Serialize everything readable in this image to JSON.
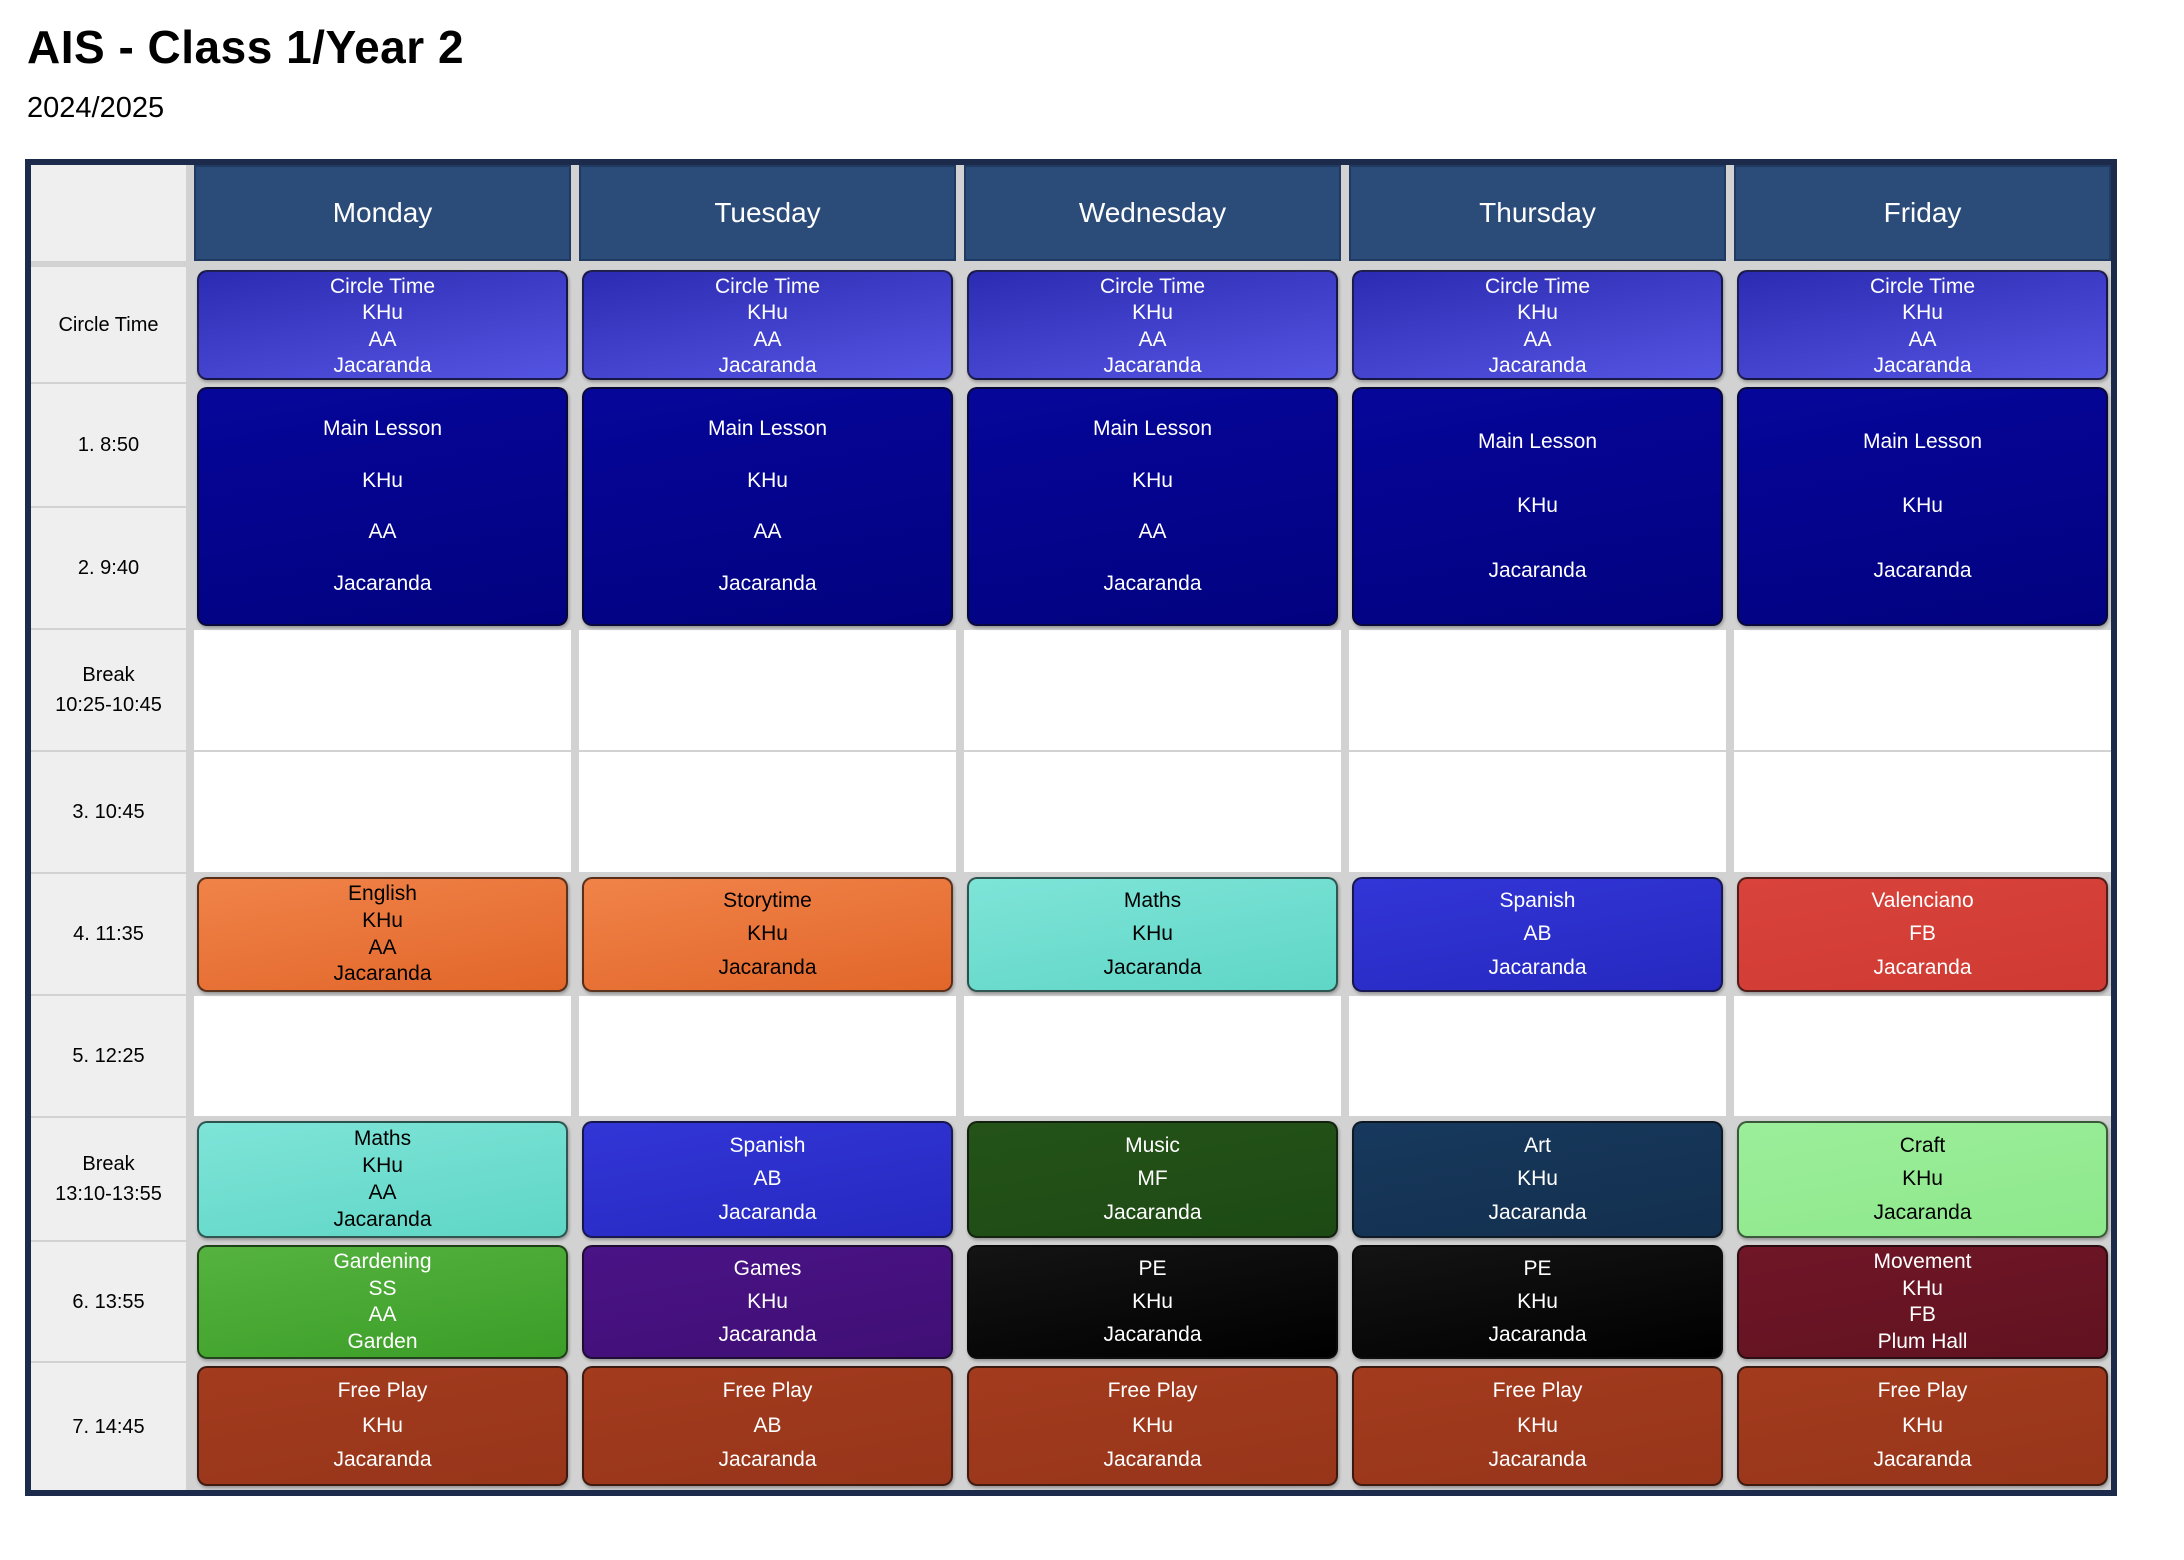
{
  "page": {
    "title": "AIS - Class 1/Year 2",
    "subtitle": "2024/2025"
  },
  "days": [
    "Monday",
    "Tuesday",
    "Wednesday",
    "Thursday",
    "Friday"
  ],
  "rows": [
    {
      "id": "circle",
      "label": "Circle Time",
      "empty": false
    },
    {
      "id": "p1",
      "label": "1. 8:50",
      "empty": false
    },
    {
      "id": "p2",
      "label": "2. 9:40",
      "empty": false
    },
    {
      "id": "break1",
      "label": "Break\n10:25-10:45",
      "empty": true
    },
    {
      "id": "p3",
      "label": "3. 10:45",
      "empty": true
    },
    {
      "id": "p4",
      "label": "4. 11:35",
      "empty": false
    },
    {
      "id": "p5",
      "label": "5. 12:25",
      "empty": true
    },
    {
      "id": "break2",
      "label": "Break\n13:10-13:55",
      "empty": false
    },
    {
      "id": "p6",
      "label": "6. 13:55",
      "empty": false
    },
    {
      "id": "p7",
      "label": "7. 14:45",
      "empty": false
    }
  ],
  "palette": {
    "header_blue": "#2b4b79",
    "label_gray": "#efefef",
    "grid_line": "#d2d2d2",
    "outer_border": "#1c2b4c",
    "circle_blue": {
      "bg": "#2b2bb2",
      "bg2": "#5454e2",
      "text": "#ffffff"
    },
    "navy_lesson": {
      "bg": "#06069a",
      "bg2": "#020280",
      "text": "#ffffff"
    },
    "orange": {
      "bg": "#f08349",
      "bg2": "#e2662a",
      "text": "#000000"
    },
    "teal": {
      "bg": "#7ee4d8",
      "bg2": "#5fd6c6",
      "text": "#000000"
    },
    "blue": {
      "bg": "#3236d6",
      "bg2": "#2628c0",
      "text": "#ffffff"
    },
    "red": {
      "bg": "#d8433b",
      "bg2": "#cf3a32",
      "text": "#ffffff"
    },
    "dark_green": {
      "bg": "#245318",
      "bg2": "#1d4a14",
      "text": "#ffffff"
    },
    "dark_navy": {
      "bg": "#17395d",
      "bg2": "#132f4e",
      "text": "#ffffff"
    },
    "light_green": {
      "bg": "#9cee9a",
      "bg2": "#8de88b",
      "text": "#000000"
    },
    "green": {
      "bg": "#55b23f",
      "bg2": "#3b9e27",
      "text": "#ffffff"
    },
    "purple": {
      "bg": "#4a1386",
      "bg2": "#400f75",
      "text": "#ffffff"
    },
    "black": {
      "bg": "#141414",
      "bg2": "#000000",
      "text": "#ffffff"
    },
    "maroon": {
      "bg": "#701627",
      "bg2": "#611220",
      "text": "#ffffff"
    },
    "rust": {
      "bg": "#a33b1e",
      "bg2": "#97351a",
      "text": "#ffffff"
    }
  },
  "cells": [
    {
      "row": "circle",
      "day": 0,
      "color": "circle_blue",
      "lines": [
        "Circle Time",
        "KHu",
        "AA",
        "Jacaranda"
      ]
    },
    {
      "row": "circle",
      "day": 1,
      "color": "circle_blue",
      "lines": [
        "Circle Time",
        "KHu",
        "AA",
        "Jacaranda"
      ]
    },
    {
      "row": "circle",
      "day": 2,
      "color": "circle_blue",
      "lines": [
        "Circle Time",
        "KHu",
        "AA",
        "Jacaranda"
      ]
    },
    {
      "row": "circle",
      "day": 3,
      "color": "circle_blue",
      "lines": [
        "Circle Time",
        "KHu",
        "AA",
        "Jacaranda"
      ]
    },
    {
      "row": "circle",
      "day": 4,
      "color": "circle_blue",
      "lines": [
        "Circle Time",
        "KHu",
        "AA",
        "Jacaranda"
      ]
    },
    {
      "row": "p1",
      "day": 0,
      "rowspan": 2,
      "color": "navy_lesson",
      "lines": [
        "Main Lesson",
        "KHu",
        "AA",
        "Jacaranda"
      ]
    },
    {
      "row": "p1",
      "day": 1,
      "rowspan": 2,
      "color": "navy_lesson",
      "lines": [
        "Main Lesson",
        "KHu",
        "AA",
        "Jacaranda"
      ]
    },
    {
      "row": "p1",
      "day": 2,
      "rowspan": 2,
      "color": "navy_lesson",
      "lines": [
        "Main Lesson",
        "KHu",
        "AA",
        "Jacaranda"
      ]
    },
    {
      "row": "p1",
      "day": 3,
      "rowspan": 2,
      "color": "navy_lesson",
      "lines": [
        "Main Lesson",
        "KHu",
        "Jacaranda"
      ]
    },
    {
      "row": "p1",
      "day": 4,
      "rowspan": 2,
      "color": "navy_lesson",
      "lines": [
        "Main Lesson",
        "KHu",
        "Jacaranda"
      ]
    },
    {
      "row": "p4",
      "day": 0,
      "color": "orange",
      "lines": [
        "English",
        "KHu",
        "AA",
        "Jacaranda"
      ]
    },
    {
      "row": "p4",
      "day": 1,
      "color": "orange",
      "lines": [
        "Storytime",
        "KHu",
        "Jacaranda"
      ]
    },
    {
      "row": "p4",
      "day": 2,
      "color": "teal",
      "lines": [
        "Maths",
        "KHu",
        "Jacaranda"
      ]
    },
    {
      "row": "p4",
      "day": 3,
      "color": "blue",
      "lines": [
        "Spanish",
        "AB",
        "Jacaranda"
      ]
    },
    {
      "row": "p4",
      "day": 4,
      "color": "red",
      "lines": [
        "Valenciano",
        "FB",
        "Jacaranda"
      ]
    },
    {
      "row": "break2",
      "day": 0,
      "color": "teal",
      "lines": [
        "Maths",
        "KHu",
        "AA",
        "Jacaranda"
      ]
    },
    {
      "row": "break2",
      "day": 1,
      "color": "blue",
      "lines": [
        "Spanish",
        "AB",
        "Jacaranda"
      ]
    },
    {
      "row": "break2",
      "day": 2,
      "color": "dark_green",
      "lines": [
        "Music",
        "MF",
        "Jacaranda"
      ]
    },
    {
      "row": "break2",
      "day": 3,
      "color": "dark_navy",
      "lines": [
        "Art",
        "KHu",
        "Jacaranda"
      ]
    },
    {
      "row": "break2",
      "day": 4,
      "color": "light_green",
      "lines": [
        "Craft",
        "KHu",
        "Jacaranda"
      ]
    },
    {
      "row": "p6",
      "day": 0,
      "color": "green",
      "lines": [
        "Gardening",
        "SS",
        "AA",
        "Garden"
      ]
    },
    {
      "row": "p6",
      "day": 1,
      "color": "purple",
      "lines": [
        "Games",
        "KHu",
        "Jacaranda"
      ]
    },
    {
      "row": "p6",
      "day": 2,
      "color": "black",
      "lines": [
        "PE",
        "KHu",
        "Jacaranda"
      ]
    },
    {
      "row": "p6",
      "day": 3,
      "color": "black",
      "lines": [
        "PE",
        "KHu",
        "Jacaranda"
      ]
    },
    {
      "row": "p6",
      "day": 4,
      "color": "maroon",
      "lines": [
        "Movement",
        "KHu",
        "FB",
        "Plum Hall"
      ]
    },
    {
      "row": "p7",
      "day": 0,
      "color": "rust",
      "lines": [
        "Free Play",
        "KHu",
        "Jacaranda"
      ]
    },
    {
      "row": "p7",
      "day": 1,
      "color": "rust",
      "lines": [
        "Free Play",
        "AB",
        "Jacaranda"
      ]
    },
    {
      "row": "p7",
      "day": 2,
      "color": "rust",
      "lines": [
        "Free Play",
        "KHu",
        "Jacaranda"
      ]
    },
    {
      "row": "p7",
      "day": 3,
      "color": "rust",
      "lines": [
        "Free Play",
        "KHu",
        "Jacaranda"
      ]
    },
    {
      "row": "p7",
      "day": 4,
      "color": "rust",
      "lines": [
        "Free Play",
        "KHu",
        "Jacaranda"
      ]
    }
  ]
}
